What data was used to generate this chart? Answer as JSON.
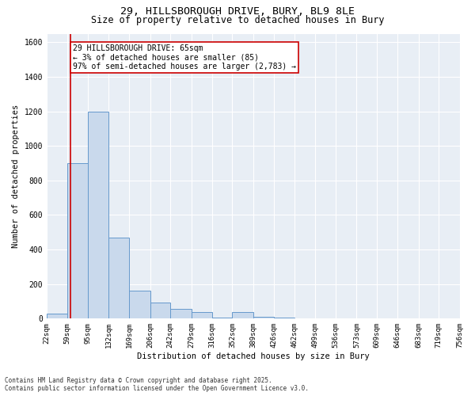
{
  "title_line1": "29, HILLSBOROUGH DRIVE, BURY, BL9 8LE",
  "title_line2": "Size of property relative to detached houses in Bury",
  "xlabel": "Distribution of detached houses by size in Bury",
  "ylabel": "Number of detached properties",
  "bins": [
    22,
    59,
    95,
    132,
    169,
    206,
    242,
    279,
    316,
    352,
    389,
    426,
    462,
    499,
    536,
    573,
    609,
    646,
    683,
    719,
    756
  ],
  "counts": [
    30,
    900,
    1200,
    470,
    160,
    95,
    55,
    40,
    5,
    40,
    10,
    5,
    2,
    2,
    1,
    1,
    1,
    1,
    1,
    1
  ],
  "bar_color": "#c9d9ec",
  "bar_edge_color": "#6699cc",
  "vline_x": 65,
  "vline_color": "#cc0000",
  "annotation_text": "29 HILLSBOROUGH DRIVE: 65sqm\n← 3% of detached houses are smaller (85)\n97% of semi-detached houses are larger (2,783) →",
  "annotation_box_color": "#ffffff",
  "annotation_box_edge_color": "#cc0000",
  "ylim": [
    0,
    1650
  ],
  "yticks": [
    0,
    200,
    400,
    600,
    800,
    1000,
    1200,
    1400,
    1600
  ],
  "background_color": "#e8eef5",
  "footer_text": "Contains HM Land Registry data © Crown copyright and database right 2025.\nContains public sector information licensed under the Open Government Licence v3.0.",
  "title_fontsize": 9.5,
  "subtitle_fontsize": 8.5,
  "axis_label_fontsize": 7.5,
  "tick_fontsize": 6.5,
  "annotation_fontsize": 7,
  "footer_fontsize": 5.5
}
